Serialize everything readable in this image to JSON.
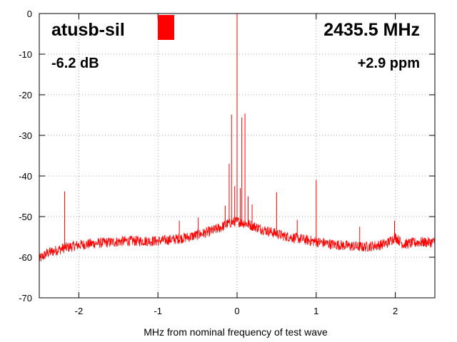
{
  "chart_data": {
    "type": "line",
    "title": "",
    "xlabel": "MHz from nominal frequency of test wave",
    "ylabel": "",
    "xlim": [
      -2.5,
      2.5
    ],
    "ylim": [
      -70,
      0
    ],
    "xticks": [
      -2,
      -1,
      0,
      1,
      2
    ],
    "yticks": [
      0,
      -10,
      -20,
      -30,
      -40,
      -50,
      -60,
      -70
    ],
    "grid": true,
    "series": [
      {
        "color": "#ff0000",
        "baseline": [
          [
            -2.5,
            -60.5
          ],
          [
            -2.4,
            -59.0
          ],
          [
            -2.2,
            -57.8
          ],
          [
            -2.0,
            -57.0
          ],
          [
            -1.8,
            -56.6
          ],
          [
            -1.6,
            -56.3
          ],
          [
            -1.4,
            -56.0
          ],
          [
            -1.2,
            -56.0
          ],
          [
            -1.0,
            -56.0
          ],
          [
            -0.8,
            -55.6
          ],
          [
            -0.6,
            -55.0
          ],
          [
            -0.5,
            -54.5
          ],
          [
            -0.4,
            -54.0
          ],
          [
            -0.3,
            -53.4
          ],
          [
            -0.2,
            -52.6
          ],
          [
            -0.1,
            -51.6
          ],
          [
            0.0,
            -51.2
          ],
          [
            0.1,
            -51.6
          ],
          [
            0.2,
            -52.3
          ],
          [
            0.3,
            -53.0
          ],
          [
            0.4,
            -53.6
          ],
          [
            0.5,
            -54.2
          ],
          [
            0.6,
            -54.8
          ],
          [
            0.8,
            -55.5
          ],
          [
            1.0,
            -56.2
          ],
          [
            1.2,
            -56.8
          ],
          [
            1.4,
            -57.2
          ],
          [
            1.6,
            -57.5
          ],
          [
            1.8,
            -57.0
          ],
          [
            1.9,
            -56.5
          ],
          [
            2.0,
            -55.0
          ],
          [
            2.1,
            -56.8
          ],
          [
            2.3,
            -56.3
          ],
          [
            2.5,
            -56.3
          ]
        ],
        "spikes": [
          [
            -2.18,
            -43.8
          ],
          [
            -0.73,
            -51.0
          ],
          [
            -0.49,
            -50.2
          ],
          [
            -0.15,
            -47.3
          ],
          [
            -0.1,
            -37.0
          ],
          [
            -0.07,
            -24.9
          ],
          [
            -0.03,
            -42.5
          ],
          [
            0.0,
            0.0
          ],
          [
            0.04,
            -43.0
          ],
          [
            0.06,
            -25.6
          ],
          [
            0.1,
            -24.6
          ],
          [
            0.14,
            -45.0
          ],
          [
            0.19,
            -47.0
          ],
          [
            0.5,
            -44.0
          ],
          [
            0.76,
            -50.8
          ],
          [
            1.0,
            -41.0
          ],
          [
            1.55,
            -52.5
          ],
          [
            1.99,
            -51.0
          ]
        ]
      }
    ],
    "annotations": {
      "name": "atusb-sil",
      "frequency": "2435.5 MHz",
      "level": "-6.2 dB",
      "ppm": "+2.9 ppm"
    },
    "marker_color": "#ff0000"
  }
}
